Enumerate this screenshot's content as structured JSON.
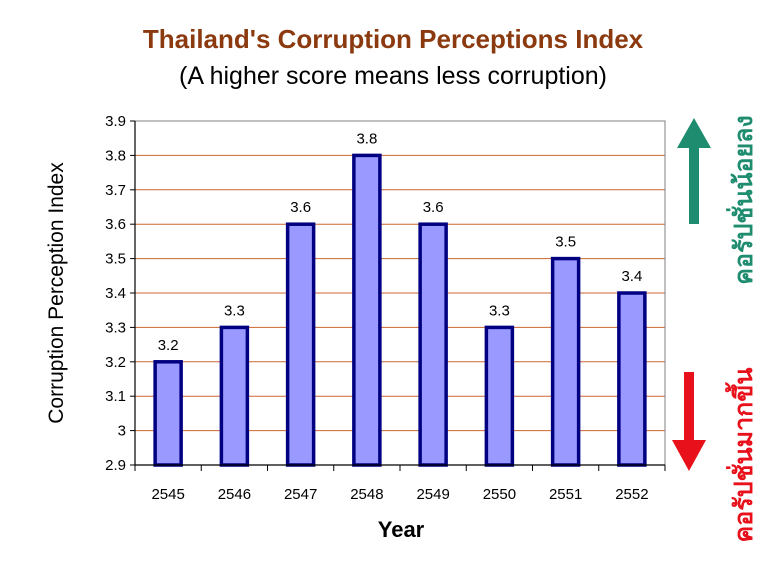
{
  "chart_data": {
    "type": "bar",
    "title": "Thailand's Corruption Perceptions Index",
    "subtitle": "(A higher score means less corruption)",
    "xlabel": "Year",
    "ylabel": "Corruption Perception Index",
    "categories": [
      "2545",
      "2546",
      "2547",
      "2548",
      "2549",
      "2550",
      "2551",
      "2552"
    ],
    "values": [
      3.2,
      3.3,
      3.6,
      3.8,
      3.6,
      3.3,
      3.5,
      3.4
    ],
    "data_labels": [
      "3.2",
      "3.3",
      "3.6",
      "3.8",
      "3.6",
      "3.3",
      "3.5",
      "3.4"
    ],
    "ylim": [
      2.9,
      3.9
    ],
    "yticks": [
      "2.9",
      "3",
      "3.1",
      "3.2",
      "3.3",
      "3.4",
      "3.5",
      "3.6",
      "3.7",
      "3.8",
      "3.9"
    ],
    "grid": true,
    "legend": "none",
    "colors": {
      "bar_fill": "#9999FF",
      "bar_stroke": "#000080",
      "grid": "#CC6633",
      "title": "#8B3A0F"
    }
  },
  "annotations": {
    "less_corruption": {
      "text": "คอรัปชั่นน้อยลง",
      "direction": "up",
      "color": "#1E8C6E"
    },
    "more_corruption": {
      "text": "คอรัปชั่นมากขึ้น",
      "direction": "down",
      "color": "#E8101A"
    }
  }
}
